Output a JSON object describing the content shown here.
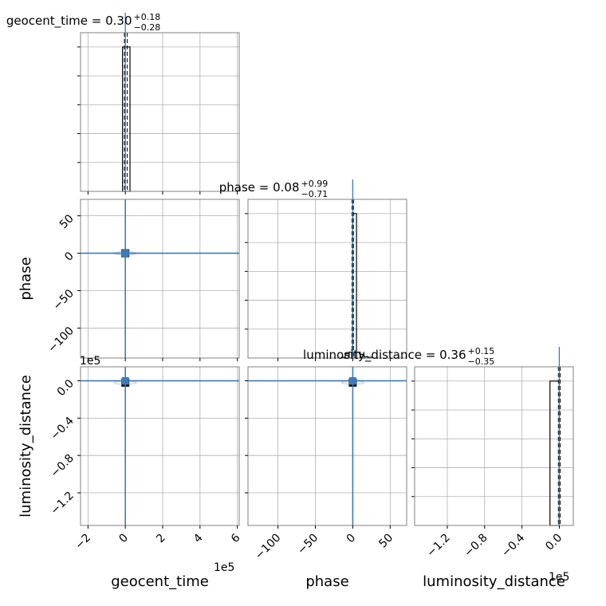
{
  "chart_data": {
    "type": "corner",
    "parameters": [
      "geocent_time",
      "phase",
      "luminosity_distance"
    ],
    "axis_labels": [
      "geocent_time",
      "phase",
      "luminosity_distance"
    ],
    "truth_color": "#3d7ab8",
    "diagonal": [
      {
        "parameter": "geocent_time",
        "title_main": "geocent_time = 0.30",
        "title_sup": "+0.18",
        "title_sub": "−0.28",
        "xlim": [
          -2.4,
          6.1
        ],
        "offset_text": "1e5",
        "bins": [
          [
            -0.15,
            0.25,
            1.0
          ]
        ],
        "median": 0.0,
        "quantile_lines": [
          -0.05,
          0.1
        ]
      },
      {
        "parameter": "phase",
        "title_main": "phase = 0.08",
        "title_sup": "+0.99",
        "title_sub": "−0.71",
        "xlim": [
          -140,
          72
        ],
        "offset_text": "",
        "bins": [
          [
            -15,
            -10,
            0.005
          ],
          [
            -10,
            -5,
            0.03
          ],
          [
            -5,
            0,
            0.04
          ],
          [
            0,
            5,
            1.0
          ],
          [
            5,
            10,
            0.04
          ],
          [
            10,
            15,
            0.025
          ],
          [
            15,
            20,
            0.01
          ],
          [
            20,
            25,
            0.005
          ]
        ],
        "median": 0.0,
        "quantile_lines": [
          -1.0,
          1.0
        ]
      },
      {
        "parameter": "luminosity_distance",
        "title_main": "luminosity_distance = 0.36",
        "title_sup": "+0.15",
        "title_sub": "−0.35",
        "xlim": [
          -1.55,
          0.15
        ],
        "offset_text": "1e5",
        "bins": [
          [
            -0.1,
            0.0,
            1.0
          ]
        ],
        "median": 0.0,
        "quantile_lines": [
          -0.01,
          0.01
        ]
      }
    ],
    "ranges": {
      "geocent_time": [
        -2.4,
        6.1
      ],
      "phase": [
        -140,
        72
      ],
      "luminosity_distance": [
        -1.55,
        0.15
      ]
    },
    "ticks": {
      "geocent_time": {
        "values": [
          -2,
          0,
          2,
          4,
          6
        ],
        "labels": [
          "−2",
          "0",
          "2",
          "4",
          "6"
        ]
      },
      "phase": {
        "values": [
          -100,
          -50,
          0,
          50
        ],
        "labels": [
          "−100",
          "−50",
          "0",
          "50"
        ]
      },
      "luminosity_distance": {
        "values": [
          -1.2,
          -0.8,
          -0.4,
          0.0
        ],
        "labels": [
          "−1.2",
          "−0.8",
          "−0.4",
          "0.0"
        ]
      }
    },
    "truths": {
      "geocent_time": 0.0,
      "phase": 0.0,
      "luminosity_distance": 0.0
    },
    "density_points": [
      {
        "row": 1,
        "col": 0,
        "x": 0.0,
        "y": 0.0
      },
      {
        "row": 2,
        "col": 0,
        "x": 0.0,
        "y": -0.02
      },
      {
        "row": 2,
        "col": 1,
        "x": 0.0,
        "y": -0.02
      }
    ],
    "grid": true
  }
}
